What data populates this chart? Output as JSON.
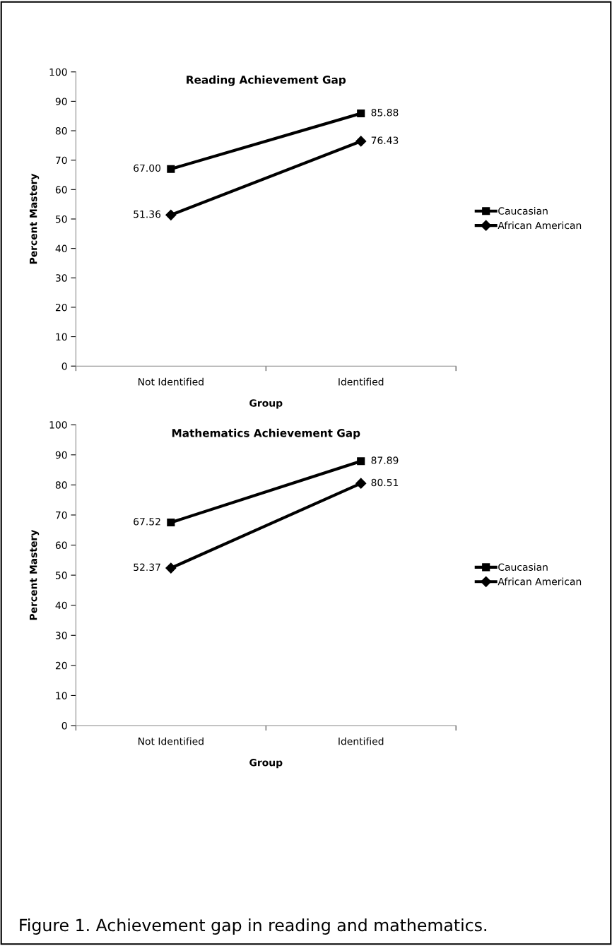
{
  "chart_data": [
    {
      "type": "line",
      "title": "Reading Achievement Gap",
      "xlabel": "Group",
      "ylabel": "Percent Mastery",
      "categories": [
        "Not Identified",
        "Identified"
      ],
      "ylim": [
        0,
        100
      ],
      "yticks": [
        0,
        10,
        20,
        30,
        40,
        50,
        60,
        70,
        80,
        90,
        100
      ],
      "grid": false,
      "legend": "right",
      "data_labels": true,
      "series": [
        {
          "name": "Caucasian",
          "color": "#000000",
          "marker": "square",
          "values": [
            67.0,
            85.88
          ],
          "value_labels": [
            "67.00",
            "85.88"
          ]
        },
        {
          "name": "African American",
          "color": "#000000",
          "marker": "diamond",
          "values": [
            51.36,
            76.43
          ],
          "value_labels": [
            "51.36",
            "76.43"
          ]
        }
      ]
    },
    {
      "type": "line",
      "title": "Mathematics Achievement Gap",
      "xlabel": "Group",
      "ylabel": "Percent Mastery",
      "categories": [
        "Not Identified",
        "Identified"
      ],
      "ylim": [
        0,
        100
      ],
      "yticks": [
        0,
        10,
        20,
        30,
        40,
        50,
        60,
        70,
        80,
        90,
        100
      ],
      "grid": false,
      "legend": "right",
      "data_labels": true,
      "annotations": [
        "Figure 1. Achievement gap in reading and mathematics."
      ],
      "series": [
        {
          "name": "Caucasian",
          "color": "#000000",
          "marker": "square",
          "values": [
            67.52,
            87.89
          ],
          "value_labels": [
            "67.52",
            "87.89"
          ]
        },
        {
          "name": "African American",
          "color": "#000000",
          "marker": "diamond",
          "values": [
            52.37,
            80.51
          ],
          "value_labels": [
            "52.37",
            "80.51"
          ]
        }
      ]
    }
  ]
}
